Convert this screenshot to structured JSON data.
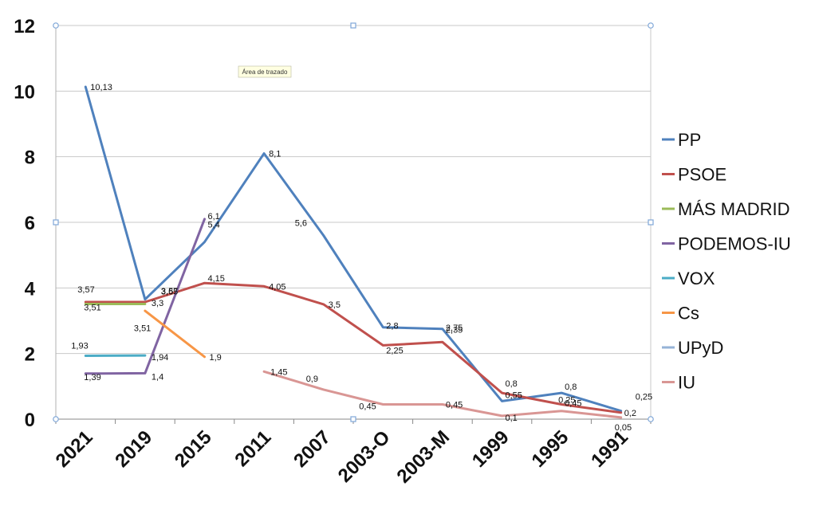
{
  "chart_data": {
    "type": "line",
    "title": "",
    "xlabel": "",
    "ylabel": "",
    "ylim": [
      0,
      12
    ],
    "yticks": [
      "0",
      "2",
      "4",
      "6",
      "8",
      "10",
      "12"
    ],
    "categories": [
      "2021",
      "2019",
      "2015",
      "2011",
      "2007",
      "2003-O",
      "2003-M",
      "1999",
      "1995",
      "1991"
    ],
    "grid": true,
    "legend_position": "right",
    "tooltip": "Área de trazado",
    "series": [
      {
        "name": "PP",
        "color": "#4f81bd",
        "values": [
          10.13,
          3.65,
          5.4,
          8.1,
          5.6,
          2.8,
          2.75,
          0.55,
          0.8,
          0.25
        ],
        "labels": [
          "10,13",
          "3,65",
          "5,4",
          "8,1",
          "5,6",
          "2,8",
          "2,75",
          "0,55",
          "0,8",
          "0,25"
        ]
      },
      {
        "name": "PSOE",
        "color": "#c0504d",
        "values": [
          3.57,
          3.57,
          4.15,
          4.05,
          3.5,
          2.25,
          2.35,
          0.8,
          0.45,
          0.2
        ],
        "labels": [
          "3,57",
          "3,57",
          "4,15",
          "4,05",
          "3,5",
          "2,25",
          "2,35",
          "0,8",
          "0,45",
          "0,2"
        ]
      },
      {
        "name": "MÁS MADRID",
        "color": "#9bbb59",
        "values": [
          3.51,
          3.51,
          null,
          null,
          null,
          null,
          null,
          null,
          null,
          null
        ],
        "labels": [
          "3,51",
          "3,51",
          null,
          null,
          null,
          null,
          null,
          null,
          null,
          null
        ]
      },
      {
        "name": "PODEMOS-IU",
        "color": "#8064a2",
        "values": [
          1.39,
          1.4,
          6.1,
          null,
          null,
          null,
          null,
          null,
          null,
          null
        ],
        "labels": [
          "1,39",
          "1,4",
          "6,1",
          null,
          null,
          null,
          null,
          null,
          null,
          null
        ]
      },
      {
        "name": "VOX",
        "color": "#4bacc6",
        "values": [
          1.93,
          1.94,
          null,
          null,
          null,
          null,
          null,
          null,
          null,
          null
        ],
        "labels": [
          "1,93",
          "1,94",
          null,
          null,
          null,
          null,
          null,
          null,
          null,
          null
        ]
      },
      {
        "name": "Cs",
        "color": "#f79646",
        "values": [
          null,
          3.3,
          1.9,
          null,
          null,
          null,
          null,
          null,
          null,
          null
        ],
        "labels": [
          null,
          "3,3",
          "1,9",
          null,
          null,
          null,
          null,
          null,
          null,
          null
        ]
      },
      {
        "name": "UPyD",
        "color": "#95b3d7",
        "values": [
          null,
          null,
          null,
          null,
          null,
          null,
          null,
          null,
          null,
          null
        ],
        "labels": [
          null,
          null,
          null,
          null,
          null,
          null,
          null,
          null,
          null,
          null
        ]
      },
      {
        "name": "IU",
        "color": "#d99694",
        "values": [
          null,
          null,
          null,
          1.45,
          0.9,
          0.45,
          0.45,
          0.1,
          0.25,
          0.05
        ],
        "labels": [
          null,
          null,
          null,
          "1,45",
          "0,9",
          "0,45",
          "0,45",
          "0,1",
          "0,25",
          "0,05"
        ]
      }
    ]
  }
}
